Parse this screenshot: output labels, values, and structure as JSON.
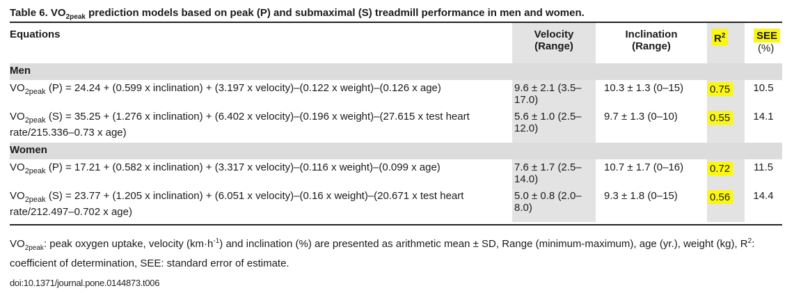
{
  "caption": {
    "prefix": "Table 6.  VO",
    "sub": "2peak",
    "rest": " prediction models based on peak (P) and submaximal (S) treadmill performance in men and women."
  },
  "headers": {
    "equations": "Equations",
    "velocity": "Velocity",
    "velocity_unit": "(Range)",
    "inclination": "Inclination",
    "inclination_unit": "(Range)",
    "r2_base": "R",
    "r2_sup": "2",
    "see": "SEE",
    "see_unit": "(%)"
  },
  "highlight_color": "#fbf715",
  "groups": [
    {
      "label": "Men",
      "rows": [
        {
          "eq_prefix": "VO",
          "eq_sub": "2peak",
          "eq_rest": " (P) = 24.24 + (0.599 x inclination) + (3.197 x velocity)–(0.122 x weight)–(0.126 x age)",
          "velocity": "9.6 ± 2.1 (3.5–17.0)",
          "inclination": "10.3 ± 1.3 (0–15)",
          "r2": "0.75",
          "see": "10.5"
        },
        {
          "eq_prefix": "VO",
          "eq_sub": "2peak",
          "eq_rest": " (S) = 35.25 + (1.276 x inclination) + (6.402 x velocity)–(0.196 x weight)–(27.615 x test heart rate/215.336–0.73 x age)",
          "velocity": "5.6 ± 1.0 (2.5–12.0)",
          "inclination": "9.7 ± 1.3 (0–10)",
          "r2": "0.55",
          "see": "14.1"
        }
      ]
    },
    {
      "label": "Women",
      "rows": [
        {
          "eq_prefix": "VO",
          "eq_sub": "2peak",
          "eq_rest": " (P) = 17.21 + (0.582 x inclination) + (3.317 x velocity)–(0.116 x weight)–(0.099 x age)",
          "velocity": "7.6 ± 1.7 (2.5–14.0)",
          "inclination": "10.7 ± 1.7 (0–16)",
          "r2": "0.72",
          "see": "11.5"
        },
        {
          "eq_prefix": "VO",
          "eq_sub": "2peak",
          "eq_rest": " (S) = 23.77 + (1.205 x inclination) + (6.051 x velocity)–(0.16 x weight)–(20.671 x test heart rate/212.497–0.702 x age)",
          "velocity": "5.0 ± 0.8 (2.0–8.0)",
          "inclination": "9.3 ± 1.8 (0–15)",
          "r2": "0.56",
          "see": "14.4"
        }
      ]
    }
  ],
  "footnote": {
    "p1": "VO",
    "p1_sub": "2peak",
    "p2": ": peak oxygen uptake, velocity (km·h",
    "p2_sup": "-1",
    "p3": ") and inclination (%) are presented as arithmetic mean ± SD, Range (minimum-maximum), age (yr.), weight (kg), R",
    "p3_sup": "2",
    "p4": ": coefficient of determination, SEE: standard error of estimate."
  },
  "doi": "doi:10.1371/journal.pone.0144873.t006"
}
